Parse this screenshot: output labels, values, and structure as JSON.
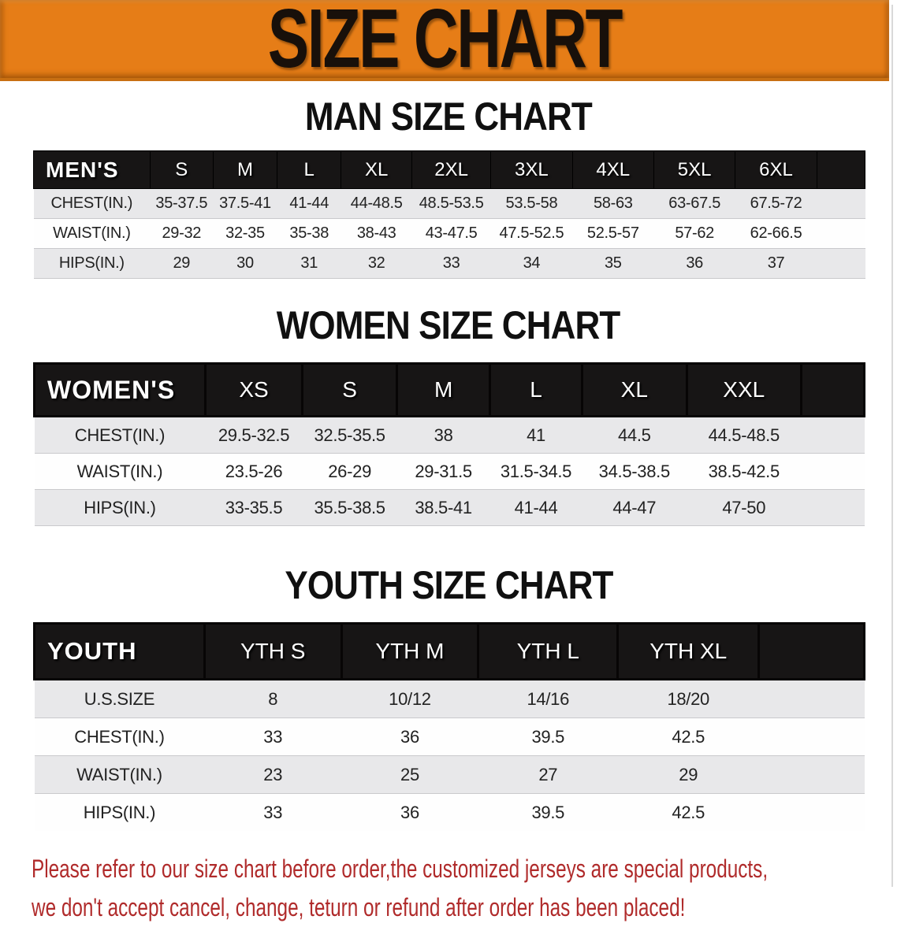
{
  "banner": {
    "title": "SIZE CHART"
  },
  "sections": [
    {
      "heading": "MAN SIZE CHART",
      "table": {
        "label": "MEN'S",
        "columns": [
          "S",
          "M",
          "L",
          "XL",
          "2XL",
          "3XL",
          "4XL",
          "5XL",
          "6XL"
        ],
        "rows": [
          {
            "label": "CHEST(IN.)",
            "values": [
              "35-37.5",
              "37.5-41",
              "41-44",
              "44-48.5",
              "48.5-53.5",
              "53.5-58",
              "58-63",
              "63-67.5",
              "67.5-72"
            ]
          },
          {
            "label": "WAIST(IN.)",
            "values": [
              "29-32",
              "32-35",
              "35-38",
              "38-43",
              "43-47.5",
              "47.5-52.5",
              "52.5-57",
              "57-62",
              "62-66.5"
            ]
          },
          {
            "label": "HIPS(IN.)",
            "values": [
              "29",
              "30",
              "31",
              "32",
              "33",
              "34",
              "35",
              "36",
              "37"
            ]
          }
        ]
      }
    },
    {
      "heading": "WOMEN SIZE CHART",
      "table": {
        "label": "WOMEN'S",
        "columns": [
          "XS",
          "S",
          "M",
          "L",
          "XL",
          "XXL"
        ],
        "rows": [
          {
            "label": "CHEST(IN.)",
            "values": [
              "29.5-32.5",
              "32.5-35.5",
              "38",
              "41",
              "44.5",
              "44.5-48.5"
            ]
          },
          {
            "label": "WAIST(IN.)",
            "values": [
              "23.5-26",
              "26-29",
              "29-31.5",
              "31.5-34.5",
              "34.5-38.5",
              "38.5-42.5"
            ]
          },
          {
            "label": "HIPS(IN.)",
            "values": [
              "33-35.5",
              "35.5-38.5",
              "38.5-41",
              "41-44",
              "44-47",
              "47-50"
            ]
          }
        ]
      }
    },
    {
      "heading": "YOUTH SIZE CHART",
      "table": {
        "label": "YOUTH",
        "columns": [
          "YTH S",
          "YTH M",
          "YTH L",
          "YTH XL"
        ],
        "rows": [
          {
            "label": "U.S.SIZE",
            "values": [
              "8",
              "10/12",
              "14/16",
              "18/20"
            ]
          },
          {
            "label": "CHEST(IN.)",
            "values": [
              "33",
              "36",
              "39.5",
              "42.5"
            ]
          },
          {
            "label": "WAIST(IN.)",
            "values": [
              "23",
              "25",
              "27",
              "29"
            ]
          },
          {
            "label": "HIPS(IN.)",
            "values": [
              "33",
              "36",
              "39.5",
              "42.5"
            ]
          }
        ]
      }
    }
  ],
  "footer": {
    "line1": "Please refer to our size chart before order,the customized jerseys are special products,",
    "line2": "we don't accept cancel, change, teturn or refund after order has been placed!"
  },
  "colors": {
    "banner_orange": "#E67D17",
    "banner_edge": "#C86F12",
    "header_bar_black": "#171515",
    "row_alt_gray": "#E8E8EA",
    "footer_red": "#B02B2B"
  }
}
